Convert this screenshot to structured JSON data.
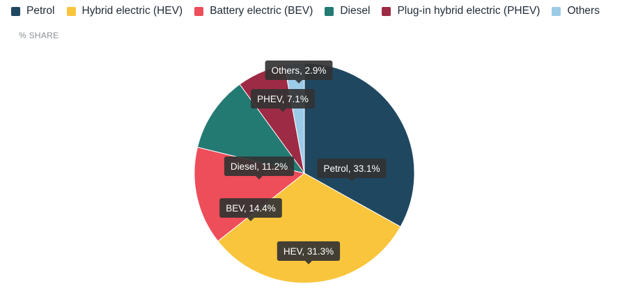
{
  "legend": [
    {
      "label": "Petrol",
      "color": "#1f4760"
    },
    {
      "label": "Hybrid electric (HEV)",
      "color": "#f9c53d"
    },
    {
      "label": "Battery electric (BEV)",
      "color": "#ee4d5a"
    },
    {
      "label": "Diesel",
      "color": "#237a73"
    },
    {
      "label": "Plug-in hybrid electric (PHEV)",
      "color": "#9e2b45"
    },
    {
      "label": "Others",
      "color": "#9ccbe8"
    }
  ],
  "subtitle": "% SHARE",
  "chart_data": {
    "type": "pie",
    "title": "",
    "subtitle": "% SHARE",
    "legend_position": "top",
    "slices": [
      {
        "name": "Petrol",
        "label": "Petrol, 33.1%",
        "value": 33.1,
        "color": "#1f4760"
      },
      {
        "name": "Hybrid electric (HEV)",
        "label": "HEV, 31.3%",
        "value": 31.3,
        "color": "#f9c53d"
      },
      {
        "name": "Battery electric (BEV)",
        "label": "BEV, 14.4%",
        "value": 14.4,
        "color": "#ee4d5a"
      },
      {
        "name": "Diesel",
        "label": "Diesel, 11.2%",
        "value": 11.2,
        "color": "#237a73"
      },
      {
        "name": "Plug-in hybrid electric (PHEV)",
        "label": "PHEV, 7.1%",
        "value": 7.1,
        "color": "#9e2b45"
      },
      {
        "name": "Others",
        "label": "Others, 2.9%",
        "value": 2.9,
        "color": "#9ccbe8"
      }
    ]
  }
}
